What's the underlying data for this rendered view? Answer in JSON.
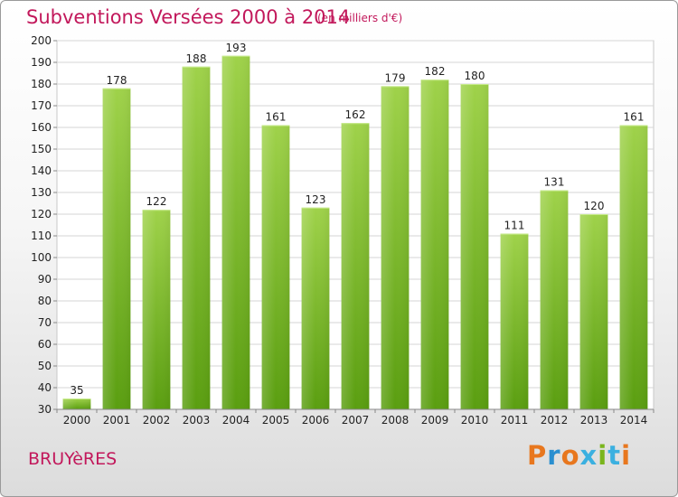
{
  "header": {
    "title": "Subventions Versées 2000 à 2014",
    "unit": "(en milliers d'€)"
  },
  "footer": {
    "location": "BRUYèRES",
    "brand": "Proxiti",
    "brand_letter_colors": [
      "#e8771e",
      "#2a8fd0",
      "#e8771e",
      "#3bb0e0",
      "#7ab51d",
      "#3bb0e0",
      "#e8771e"
    ]
  },
  "colors": {
    "bar_top": "#9fd24a",
    "bar_bottom": "#5a9e10",
    "grid": "#d6d6d6",
    "axis": "#888888",
    "accent": "#c2185b"
  },
  "chart_data": {
    "type": "bar",
    "title": "Subventions Versées 2000 à 2014",
    "subtitle": "(en milliers d'€)",
    "categories": [
      "2000",
      "2001",
      "2002",
      "2003",
      "2004",
      "2005",
      "2006",
      "2007",
      "2008",
      "2009",
      "2010",
      "2011",
      "2012",
      "2013",
      "2014"
    ],
    "values": [
      35,
      178,
      122,
      188,
      193,
      161,
      123,
      162,
      179,
      182,
      180,
      111,
      131,
      120,
      161
    ],
    "ylim": [
      30,
      200
    ],
    "yticks": [
      30,
      40,
      50,
      60,
      70,
      80,
      90,
      100,
      110,
      120,
      130,
      140,
      150,
      160,
      170,
      180,
      190,
      200
    ],
    "grid": true,
    "data_labels": true,
    "xlabel": "",
    "ylabel": ""
  }
}
